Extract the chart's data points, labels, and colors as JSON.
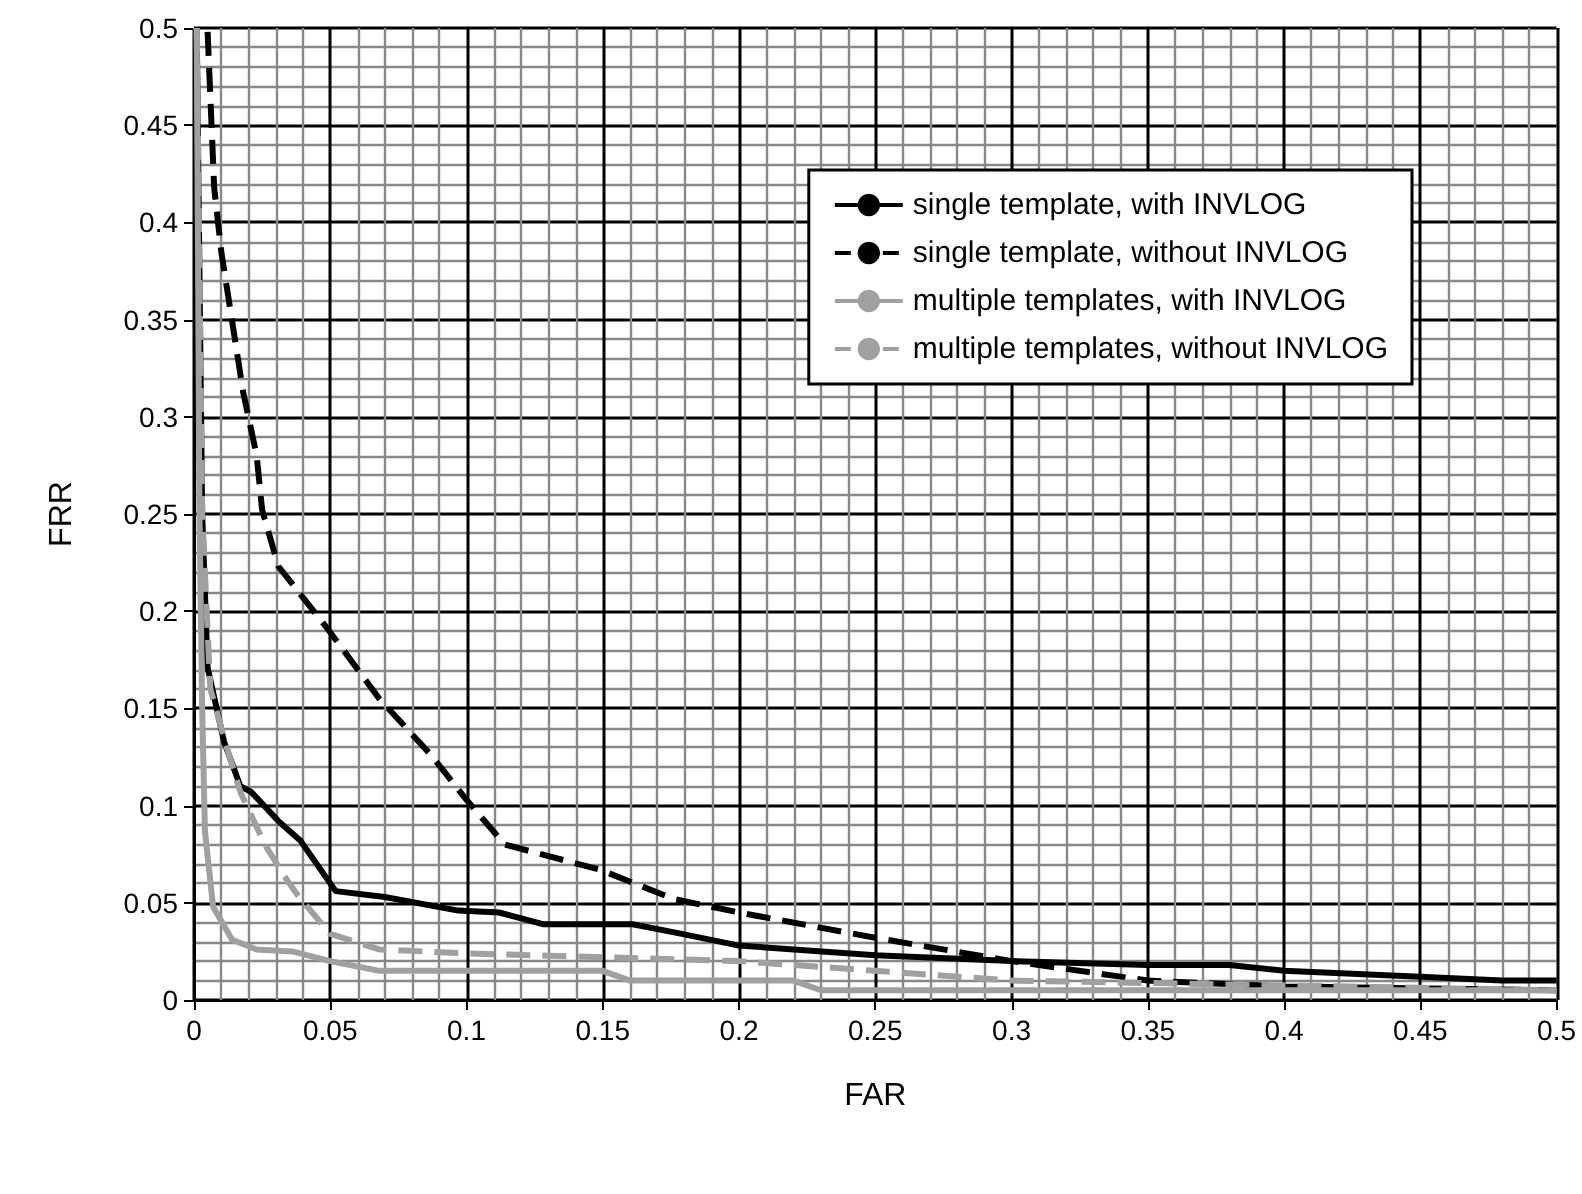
{
  "chart_data": {
    "type": "line",
    "xlabel": "FAR",
    "ylabel": "FRR",
    "xlim": [
      0,
      0.5
    ],
    "ylim": [
      0,
      0.5
    ],
    "xticks": [
      0,
      0.05,
      0.1,
      0.15,
      0.2,
      0.25,
      0.3,
      0.35,
      0.4,
      0.45,
      0.5
    ],
    "yticks": [
      0,
      0.05,
      0.1,
      0.15,
      0.2,
      0.25,
      0.3,
      0.35,
      0.4,
      0.45,
      0.5
    ],
    "grid": true,
    "legend": "top right",
    "marker": "none",
    "series": [
      {
        "name": "single template, with INVLOG",
        "color": "#000000",
        "line_style": "solid",
        "x": [
          0.001,
          0.003,
          0.005,
          0.011,
          0.017,
          0.021,
          0.031,
          0.039,
          0.052,
          0.07,
          0.097,
          0.112,
          0.128,
          0.161,
          0.179,
          0.2,
          0.25,
          0.3,
          0.35,
          0.38,
          0.4,
          0.45,
          0.48,
          0.5
        ],
        "values": [
          0.5,
          0.25,
          0.171,
          0.133,
          0.11,
          0.107,
          0.092,
          0.082,
          0.056,
          0.053,
          0.046,
          0.045,
          0.039,
          0.039,
          0.034,
          0.028,
          0.023,
          0.02,
          0.018,
          0.018,
          0.015,
          0.012,
          0.01,
          0.01
        ]
      },
      {
        "name": "single template, without INVLOG",
        "color": "#000000",
        "line_style": "dashed",
        "x": [
          0.005,
          0.0074,
          0.01,
          0.015,
          0.018,
          0.023,
          0.025,
          0.031,
          0.049,
          0.068,
          0.087,
          0.1,
          0.114,
          0.149,
          0.176,
          0.2,
          0.25,
          0.3,
          0.35,
          0.4,
          0.5
        ],
        "values": [
          0.498,
          0.418,
          0.385,
          0.34,
          0.313,
          0.28,
          0.252,
          0.223,
          0.191,
          0.155,
          0.126,
          0.103,
          0.08,
          0.067,
          0.052,
          0.045,
          0.032,
          0.02,
          0.01,
          0.007,
          0.005
        ]
      },
      {
        "name": "multiple templates, with INVLOG",
        "color": "#a0a0a0",
        "line_style": "solid",
        "x": [
          0.001,
          0.002,
          0.003,
          0.004,
          0.007,
          0.014,
          0.023,
          0.036,
          0.05,
          0.068,
          0.15,
          0.16,
          0.22,
          0.23,
          0.5
        ],
        "values": [
          0.5,
          0.25,
          0.15,
          0.087,
          0.048,
          0.031,
          0.026,
          0.025,
          0.02,
          0.015,
          0.015,
          0.01,
          0.01,
          0.005,
          0.005
        ]
      },
      {
        "name": "multiple templates, without INVLOG",
        "color": "#a0a0a0",
        "line_style": "dashed",
        "x": [
          0.001,
          0.003,
          0.006,
          0.012,
          0.017,
          0.026,
          0.033,
          0.038,
          0.05,
          0.068,
          0.1,
          0.2,
          0.25,
          0.3,
          0.5
        ],
        "values": [
          0.5,
          0.25,
          0.16,
          0.13,
          0.107,
          0.08,
          0.064,
          0.054,
          0.034,
          0.026,
          0.024,
          0.02,
          0.015,
          0.01,
          0.005
        ]
      }
    ]
  }
}
